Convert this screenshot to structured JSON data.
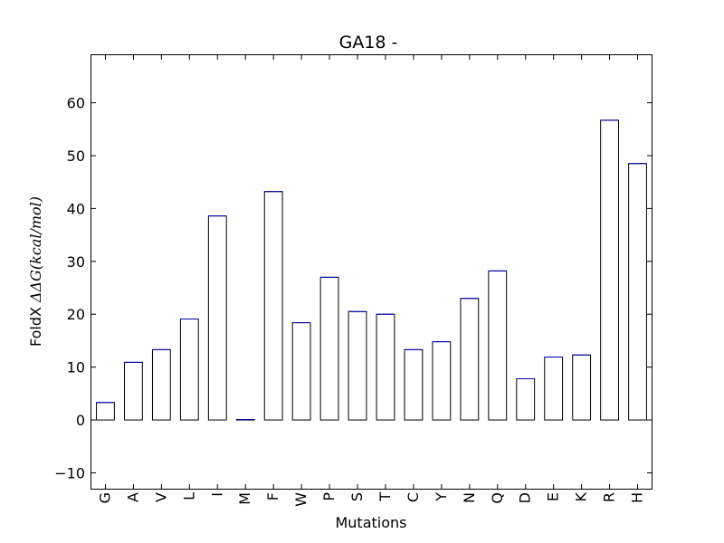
{
  "chart_data": {
    "type": "bar",
    "title": "GA18 -",
    "xlabel": "Mutations",
    "ylabel": {
      "prefix": "FoldX ",
      "math": "ΔΔG(kcal/mol)"
    },
    "categories": [
      "G",
      "A",
      "V",
      "L",
      "I",
      "M",
      "F",
      "W",
      "P",
      "S",
      "T",
      "C",
      "Y",
      "N",
      "Q",
      "D",
      "E",
      "K",
      "R",
      "H"
    ],
    "values": [
      3.3,
      10.9,
      13.3,
      19.1,
      38.6,
      0.1,
      43.2,
      18.4,
      27.0,
      20.5,
      20.0,
      13.3,
      14.8,
      23.0,
      28.2,
      7.8,
      11.9,
      12.3,
      56.7,
      48.5
    ],
    "ylim": [
      -13,
      69
    ],
    "yticks": [
      -10,
      0,
      10,
      20,
      30,
      40,
      50,
      60
    ],
    "ytick_labels": [
      "−10",
      "0",
      "10",
      "20",
      "30",
      "40",
      "50",
      "60"
    ],
    "grid": false,
    "bar_fill": "#ffffff",
    "bar_edge": "#000000",
    "bar_top_edge": "#0000bf"
  }
}
